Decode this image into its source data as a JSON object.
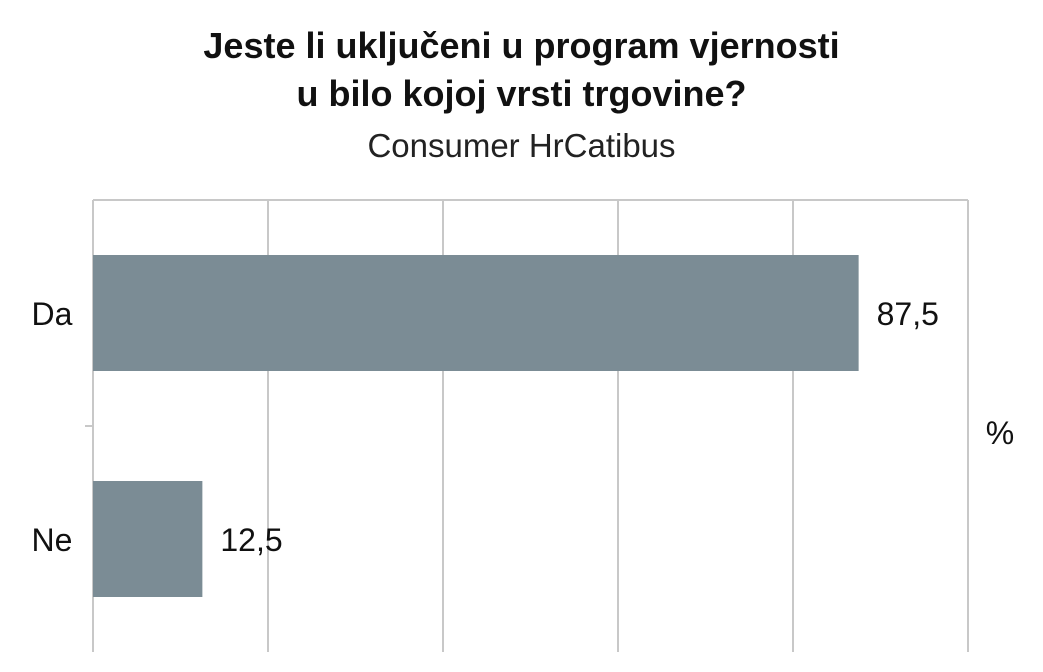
{
  "chart_data": {
    "type": "bar",
    "orientation": "horizontal",
    "title_lines": [
      "Jeste li uključeni u program vjernosti",
      "u bilo kojoj vrsti trgovine?"
    ],
    "subtitle": "Consumer HrCatibus",
    "categories": [
      "Da",
      "Ne"
    ],
    "values": [
      87.5,
      12.5
    ],
    "value_labels": [
      "87,5",
      "12,5"
    ],
    "unit_label": "%",
    "xlim": [
      0,
      100
    ],
    "grid": true,
    "bar_color": "#7b8c95",
    "grid_color": "#c8c8c8"
  }
}
